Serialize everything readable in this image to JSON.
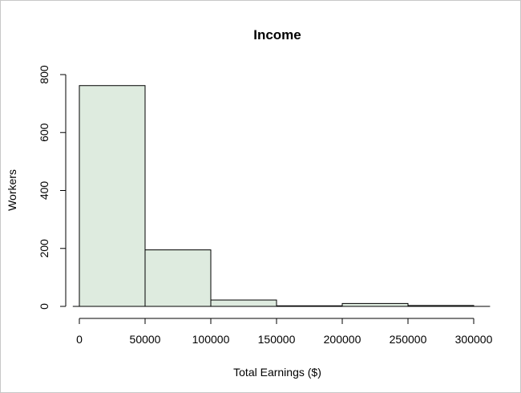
{
  "chart_data": {
    "type": "bar",
    "subtype": "histogram",
    "title": "Income",
    "xlabel": "Total Earnings ($)",
    "ylabel": "Workers",
    "bins": [
      {
        "from": 0,
        "to": 50000,
        "count": 762
      },
      {
        "from": 50000,
        "to": 100000,
        "count": 195
      },
      {
        "from": 100000,
        "to": 150000,
        "count": 22
      },
      {
        "from": 150000,
        "to": 200000,
        "count": 2
      },
      {
        "from": 200000,
        "to": 250000,
        "count": 10
      },
      {
        "from": 250000,
        "to": 300000,
        "count": 3
      }
    ],
    "xlim": [
      -5000,
      310000
    ],
    "ylim": [
      0,
      800
    ],
    "x_ticks": [
      0,
      50000,
      100000,
      150000,
      200000,
      250000,
      300000
    ],
    "y_ticks": [
      0,
      200,
      400,
      600,
      800
    ],
    "bar_color": "#deebdf",
    "edge_color": "#000000",
    "grid": false,
    "legend": "none"
  }
}
